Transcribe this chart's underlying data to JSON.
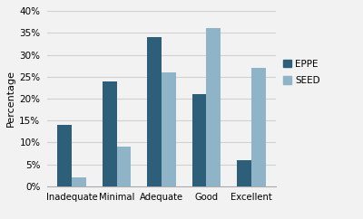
{
  "categories": [
    "Inadequate",
    "Minimal",
    "Adequate",
    "Good",
    "Excellent"
  ],
  "eppe": [
    0.14,
    0.24,
    0.34,
    0.21,
    0.06
  ],
  "seed": [
    0.02,
    0.09,
    0.26,
    0.36,
    0.27
  ],
  "eppe_color": "#2E5F7A",
  "seed_color": "#8FB4C8",
  "ylabel": "Percentage",
  "ylim": [
    0,
    0.4
  ],
  "yticks": [
    0.0,
    0.05,
    0.1,
    0.15,
    0.2,
    0.25,
    0.3,
    0.35,
    0.4
  ],
  "legend_labels": [
    "EPPE",
    "SEED"
  ],
  "bar_width": 0.32,
  "background_color": "#f2f2f2",
  "plot_bg_color": "#f2f2f2",
  "grid_color": "#d0d0d0",
  "border_color": "#aaaaaa"
}
